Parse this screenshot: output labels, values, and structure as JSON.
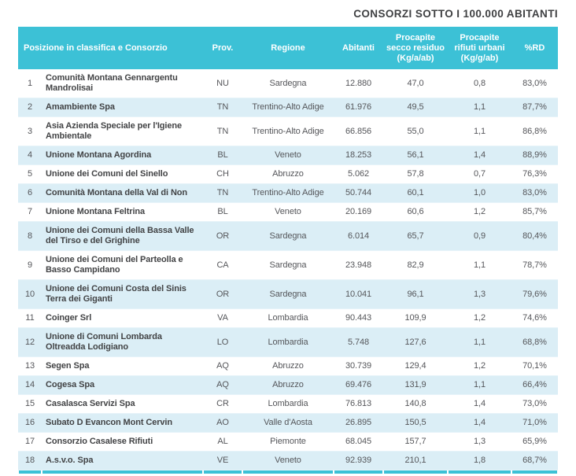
{
  "title": "CONSORZI SOTTO I 100.000 ABITANTI",
  "colors": {
    "header_bg": "#3cc1d6",
    "header_text": "#ffffff",
    "alt_row_bg": "#dbeef6",
    "accent_line": "#3cc1d6",
    "name_text": "#424345",
    "body_text": "#55565a",
    "title_text": "#3f4042"
  },
  "header": {
    "pos_consorzio": "Posizione in classifica e Consorzio",
    "prov": "Prov.",
    "regione": "Regione",
    "abitanti": "Abitanti",
    "secco": "Procapite\nsecco residuo\n(Kg/a/ab)",
    "rifiuti": "Procapite\nrifiuti urbani\n(Kg/g/ab)",
    "rd": "%RD"
  },
  "rows": [
    {
      "pos": "1",
      "name": "Comunità Montana Gennargentu Mandrolisai",
      "prov": "NU",
      "regione": "Sardegna",
      "abitanti": "12.880",
      "secco": "47,0",
      "rifiuti": "0,8",
      "rd": "83,0%"
    },
    {
      "pos": "2",
      "name": "Amambiente Spa",
      "prov": "TN",
      "regione": "Trentino-Alto Adige",
      "abitanti": "61.976",
      "secco": "49,5",
      "rifiuti": "1,1",
      "rd": "87,7%"
    },
    {
      "pos": "3",
      "name": "Asia Azienda Speciale per l'Igiene Ambientale",
      "prov": "TN",
      "regione": "Trentino-Alto Adige",
      "abitanti": "66.856",
      "secco": "55,0",
      "rifiuti": "1,1",
      "rd": "86,8%"
    },
    {
      "pos": "4",
      "name": "Unione Montana Agordina",
      "prov": "BL",
      "regione": "Veneto",
      "abitanti": "18.253",
      "secco": "56,1",
      "rifiuti": "1,4",
      "rd": "88,9%"
    },
    {
      "pos": "5",
      "name": "Unione dei Comuni del Sinello",
      "prov": "CH",
      "regione": "Abruzzo",
      "abitanti": "5.062",
      "secco": "57,8",
      "rifiuti": "0,7",
      "rd": "76,3%"
    },
    {
      "pos": "6",
      "name": "Comunità Montana della Val di Non",
      "prov": "TN",
      "regione": "Trentino-Alto Adige",
      "abitanti": "50.744",
      "secco": "60,1",
      "rifiuti": "1,0",
      "rd": "83,0%"
    },
    {
      "pos": "7",
      "name": "Unione Montana Feltrina",
      "prov": "BL",
      "regione": "Veneto",
      "abitanti": "20.169",
      "secco": "60,6",
      "rifiuti": "1,2",
      "rd": "85,7%"
    },
    {
      "pos": "8",
      "name": "Unione dei Comuni della Bassa Valle del Tirso e del Grighine",
      "prov": "OR",
      "regione": "Sardegna",
      "abitanti": "6.014",
      "secco": "65,7",
      "rifiuti": "0,9",
      "rd": "80,4%"
    },
    {
      "pos": "9",
      "name": "Unione dei Comuni del Parteolla e Basso Campidano",
      "prov": "CA",
      "regione": "Sardegna",
      "abitanti": "23.948",
      "secco": "82,9",
      "rifiuti": "1,1",
      "rd": "78,7%"
    },
    {
      "pos": "10",
      "name": "Unione dei Comuni Costa del Sinis Terra dei Giganti",
      "prov": "OR",
      "regione": "Sardegna",
      "abitanti": "10.041",
      "secco": "96,1",
      "rifiuti": "1,3",
      "rd": "79,6%"
    },
    {
      "pos": "11",
      "name": "Coinger Srl",
      "prov": "VA",
      "regione": "Lombardia",
      "abitanti": "90.443",
      "secco": "109,9",
      "rifiuti": "1,2",
      "rd": "74,6%"
    },
    {
      "pos": "12",
      "name": "Unione di Comuni Lombarda Oltreadda Lodigiano",
      "prov": "LO",
      "regione": "Lombardia",
      "abitanti": "5.748",
      "secco": "127,6",
      "rifiuti": "1,1",
      "rd": "68,8%"
    },
    {
      "pos": "13",
      "name": "Segen Spa",
      "prov": "AQ",
      "regione": "Abruzzo",
      "abitanti": "30.739",
      "secco": "129,4",
      "rifiuti": "1,2",
      "rd": "70,1%"
    },
    {
      "pos": "14",
      "name": "Cogesa Spa",
      "prov": "AQ",
      "regione": "Abruzzo",
      "abitanti": "69.476",
      "secco": "131,9",
      "rifiuti": "1,1",
      "rd": "66,4%"
    },
    {
      "pos": "15",
      "name": "Casalasca Servizi Spa",
      "prov": "CR",
      "regione": "Lombardia",
      "abitanti": "76.813",
      "secco": "140,8",
      "rifiuti": "1,4",
      "rd": "73,0%"
    },
    {
      "pos": "16",
      "name": "Subato D Evancon Mont Cervin",
      "prov": "AO",
      "regione": "Valle d'Aosta",
      "abitanti": "26.895",
      "secco": "150,5",
      "rifiuti": "1,4",
      "rd": "71,0%"
    },
    {
      "pos": "17",
      "name": "Consorzio Casalese Rifiuti",
      "prov": "AL",
      "regione": "Piemonte",
      "abitanti": "68.045",
      "secco": "157,7",
      "rifiuti": "1,3",
      "rd": "65,9%"
    },
    {
      "pos": "18",
      "name": "A.s.v.o. Spa",
      "prov": "VE",
      "regione": "Veneto",
      "abitanti": "92.939",
      "secco": "210,1",
      "rifiuti": "1,8",
      "rd": "68,7%"
    }
  ]
}
